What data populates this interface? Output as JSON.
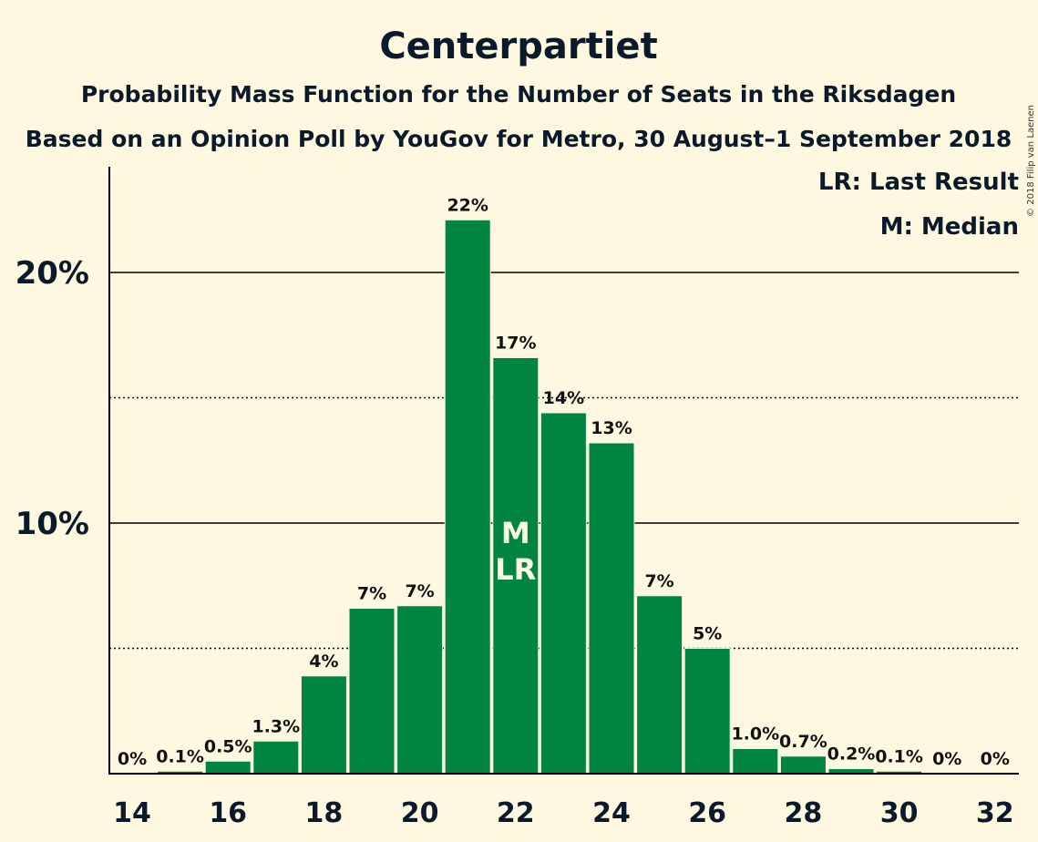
{
  "chart_data": {
    "type": "bar",
    "title": "Centerpartiet",
    "subtitle_1": "Probability Mass Function for the Number of Seats in the Riksdagen",
    "subtitle_2": "Based on an Opinion Poll by YouGov for Metro, 30 August–1 September 2018",
    "copyright": "© 2018 Filip van Laenen",
    "x": [
      14,
      15,
      16,
      17,
      18,
      19,
      20,
      21,
      22,
      23,
      24,
      25,
      26,
      27,
      28,
      29,
      30,
      31,
      32
    ],
    "values": [
      0,
      0.1,
      0.5,
      1.3,
      3.9,
      6.6,
      6.7,
      22.1,
      16.6,
      14.4,
      13.2,
      7.1,
      5.0,
      1.0,
      0.7,
      0.2,
      0.1,
      0,
      0
    ],
    "data_labels": [
      "0%",
      "0.1%",
      "0.5%",
      "1.3%",
      "4%",
      "7%",
      "7%",
      "22%",
      "17%",
      "14%",
      "13%",
      "7%",
      "5%",
      "1.0%",
      "0.7%",
      "0.2%",
      "0.1%",
      "0%",
      "0%"
    ],
    "x_tick_labels": [
      "14",
      "16",
      "18",
      "20",
      "22",
      "24",
      "26",
      "28",
      "30",
      "32"
    ],
    "y_ticks": [
      10,
      20
    ],
    "y_tick_labels": [
      "10%",
      "20%"
    ],
    "y_minor_lines": [
      5,
      15
    ],
    "ylim": [
      0,
      24.2
    ],
    "bar_color": "#008540",
    "background_color": "#FFF8E1",
    "median_seat": 22,
    "last_result_seat": 22,
    "median_marker": "M",
    "last_result_marker": "LR",
    "legend": [
      "LR: Last Result",
      "M: Median"
    ],
    "legend_position": "top-right",
    "grid": true
  }
}
